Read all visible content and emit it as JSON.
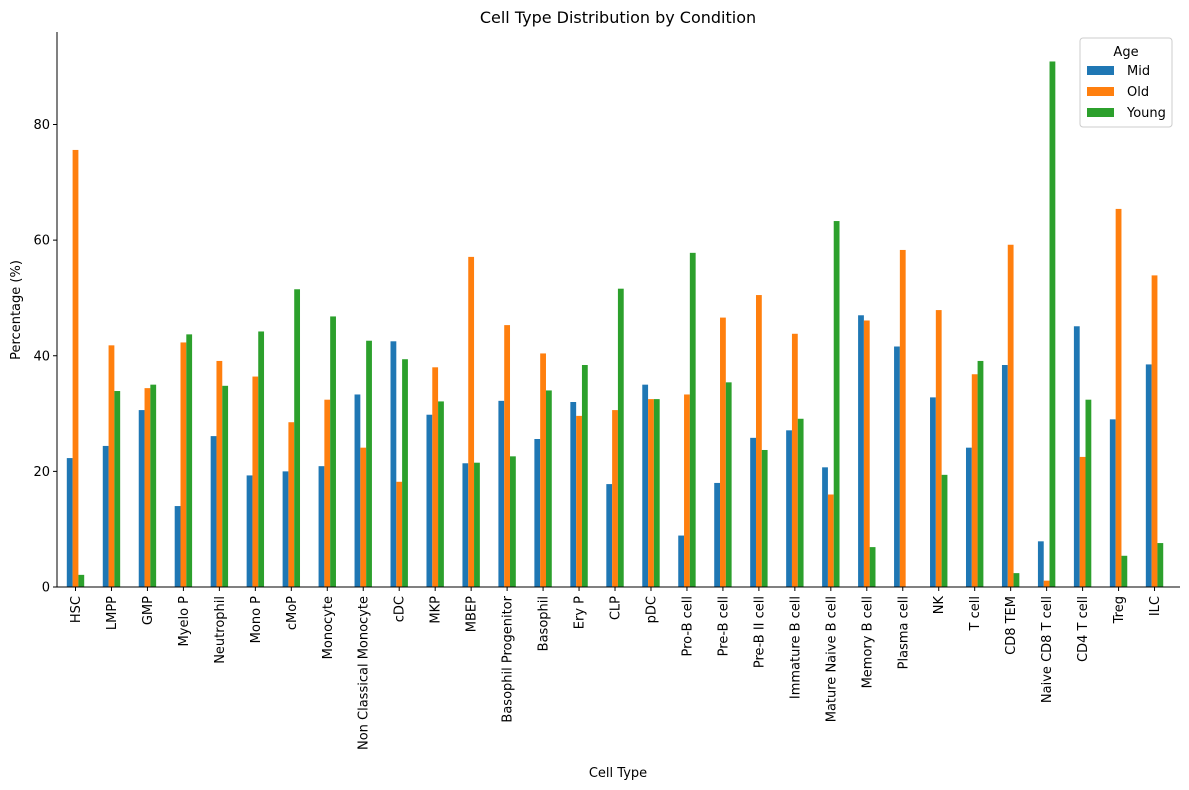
{
  "chart_data": {
    "type": "bar",
    "title": "Cell Type Distribution by Condition",
    "xlabel": "Cell Type",
    "ylabel": "Percentage (%)",
    "ylim": [
      0,
      96
    ],
    "yticks": [
      0,
      20,
      40,
      60,
      80
    ],
    "grid": false,
    "legend": {
      "title": "Age",
      "placement": "top-right"
    },
    "categories": [
      "HSC",
      "LMPP",
      "GMP",
      "Myelo P",
      "Neutrophil",
      "Mono P",
      "cMoP",
      "Monocyte",
      "Non Classical Monocyte",
      "cDC",
      "MKP",
      "MBEP",
      "Basophil Progenitor",
      "Basophil",
      "Ery P",
      "CLP",
      "pDC",
      "Pro-B cell",
      "Pre-B cell",
      "Pre-B II cell",
      "Immature B cell",
      "Mature Naive B cell",
      "Memory B cell",
      "Plasma cell",
      "NK",
      "T cell",
      "CD8 TEM",
      "Naive CD8 T cell",
      "CD4 T cell",
      "Treg",
      "ILC"
    ],
    "series": [
      {
        "name": "Mid",
        "color": "#1f77b4",
        "values": [
          22.3,
          24.4,
          30.6,
          14.0,
          26.1,
          19.3,
          20.0,
          20.9,
          33.3,
          42.5,
          29.8,
          21.4,
          32.2,
          25.6,
          32.0,
          17.8,
          35.0,
          8.9,
          18.0,
          25.8,
          27.1,
          20.7,
          47.0,
          41.6,
          32.8,
          24.1,
          38.4,
          7.9,
          45.1,
          29.0,
          38.5
        ]
      },
      {
        "name": "Old",
        "color": "#ff7f0e",
        "values": [
          75.6,
          41.8,
          34.4,
          42.3,
          39.1,
          36.4,
          28.5,
          32.4,
          24.1,
          18.2,
          38.0,
          57.1,
          45.3,
          40.4,
          29.6,
          30.6,
          32.5,
          33.3,
          46.6,
          50.5,
          43.8,
          16.0,
          46.1,
          58.3,
          47.9,
          36.8,
          59.2,
          1.1,
          22.5,
          65.4,
          53.9
        ]
      },
      {
        "name": "Young",
        "color": "#2ca02c",
        "values": [
          2.1,
          33.9,
          35.0,
          43.7,
          34.8,
          44.2,
          51.5,
          46.8,
          42.6,
          39.4,
          32.1,
          21.5,
          22.6,
          34.0,
          38.4,
          51.6,
          32.5,
          57.8,
          35.4,
          23.7,
          29.1,
          63.3,
          6.9,
          0.0,
          19.4,
          39.1,
          2.4,
          90.9,
          32.4,
          5.4,
          7.6
        ]
      }
    ]
  }
}
